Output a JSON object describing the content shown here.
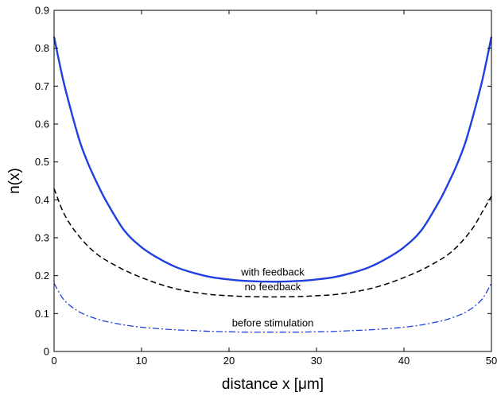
{
  "chart_data": {
    "type": "line",
    "xlabel": "distance x [μm]",
    "ylabel": "n(x)",
    "xlim": [
      0,
      50
    ],
    "ylim": [
      0,
      0.9
    ],
    "xticks": [
      "0",
      "10",
      "20",
      "30",
      "40",
      "50"
    ],
    "yticks": [
      "0",
      "0.1",
      "0.2",
      "0.3",
      "0.4",
      "0.5",
      "0.6",
      "0.7",
      "0.8",
      "0.9"
    ],
    "grid": false,
    "series": [
      {
        "name": "with feedback",
        "color": "#1f3fe0",
        "style": "solid",
        "x": [
          0,
          1,
          2,
          3,
          4,
          5,
          6,
          8,
          10,
          12,
          14,
          16,
          18,
          20,
          22,
          25,
          28,
          30,
          32,
          34,
          36,
          38,
          40,
          42,
          44,
          45,
          46,
          47,
          48,
          49,
          50
        ],
        "y": [
          0.83,
          0.72,
          0.63,
          0.55,
          0.49,
          0.44,
          0.395,
          0.32,
          0.275,
          0.245,
          0.222,
          0.207,
          0.196,
          0.19,
          0.186,
          0.184,
          0.186,
          0.19,
          0.196,
          0.207,
          0.222,
          0.245,
          0.275,
          0.32,
          0.395,
          0.44,
          0.49,
          0.55,
          0.63,
          0.72,
          0.83
        ]
      },
      {
        "name": "no feedback",
        "color": "#000000",
        "style": "dashed",
        "x": [
          0,
          1,
          2,
          3,
          4,
          5,
          6,
          8,
          10,
          12,
          14,
          16,
          18,
          20,
          22,
          25,
          28,
          30,
          32,
          34,
          36,
          38,
          40,
          42,
          44,
          45,
          46,
          47,
          48,
          49,
          50
        ],
        "y": [
          0.43,
          0.37,
          0.33,
          0.3,
          0.275,
          0.255,
          0.24,
          0.215,
          0.195,
          0.178,
          0.165,
          0.156,
          0.15,
          0.147,
          0.145,
          0.144,
          0.145,
          0.147,
          0.15,
          0.156,
          0.165,
          0.178,
          0.195,
          0.215,
          0.24,
          0.255,
          0.275,
          0.3,
          0.33,
          0.37,
          0.41
        ]
      },
      {
        "name": "before stimulation",
        "color": "#1f3fe0",
        "style": "dashdot",
        "x": [
          0,
          1,
          2,
          3,
          4,
          5,
          6,
          8,
          10,
          12,
          14,
          16,
          18,
          20,
          22,
          25,
          28,
          30,
          32,
          34,
          36,
          38,
          40,
          42,
          44,
          45,
          46,
          47,
          48,
          49,
          50
        ],
        "y": [
          0.18,
          0.14,
          0.118,
          0.103,
          0.093,
          0.085,
          0.079,
          0.07,
          0.064,
          0.06,
          0.057,
          0.055,
          0.053,
          0.052,
          0.051,
          0.051,
          0.051,
          0.052,
          0.053,
          0.055,
          0.057,
          0.06,
          0.064,
          0.07,
          0.079,
          0.085,
          0.093,
          0.103,
          0.118,
          0.14,
          0.18
        ]
      }
    ],
    "annotations": [
      {
        "text": "with feedback",
        "x": 25,
        "y": 0.2
      },
      {
        "text": "no feedback",
        "x": 25,
        "y": 0.162
      },
      {
        "text": "before stimulation",
        "x": 25,
        "y": 0.066
      }
    ]
  }
}
